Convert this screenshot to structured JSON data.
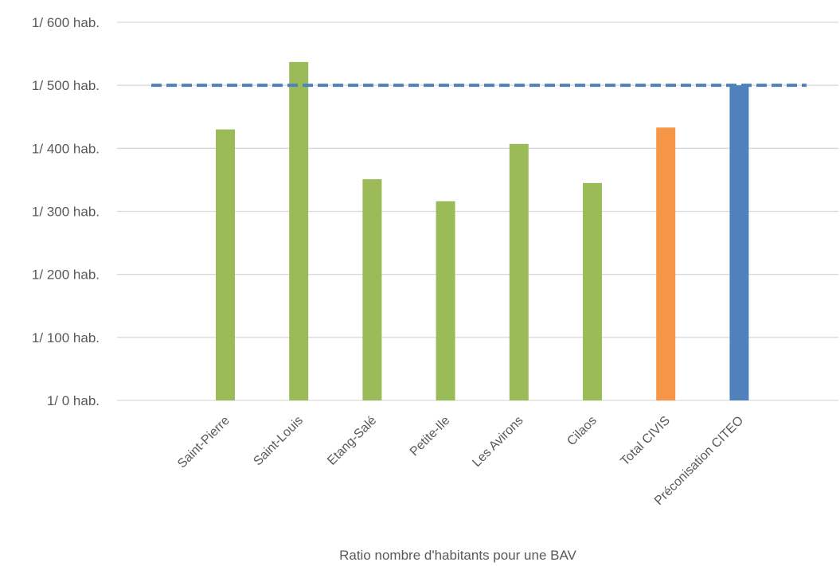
{
  "chart_data": {
    "type": "bar",
    "title": "",
    "xlabel": "Ratio  nombre d'habitants pour une BAV",
    "ylabel": "",
    "ylim": [
      0,
      600
    ],
    "y_ticks": [
      0,
      100,
      200,
      300,
      400,
      500,
      600
    ],
    "y_tick_labels": [
      "1/ 0 hab.",
      "1/ 100 hab.",
      "1/ 200 hab.",
      "1/ 300 hab.",
      "1/ 400 hab.",
      "1/ 500 hab.",
      "1/ 600 hab."
    ],
    "grid": true,
    "legend": "none",
    "categories": [
      "Saint-Pierre",
      "Saint-Louis",
      "Etang-Salé",
      "Petite-Ile",
      "Les Avirons",
      "Cilaos",
      "Total CIVIS",
      "Préconisation CITEO"
    ],
    "values": [
      430,
      537,
      351,
      316,
      407,
      345,
      433,
      500
    ],
    "bar_colors": [
      "#9bbb59",
      "#9bbb59",
      "#9bbb59",
      "#9bbb59",
      "#9bbb59",
      "#9bbb59",
      "#f79646",
      "#4f81bd"
    ],
    "reference_line": {
      "value": 500,
      "style": "dashed",
      "color": "#4f81bd"
    },
    "gridline_color": "#d9d9d9",
    "text_color": "#595959"
  }
}
